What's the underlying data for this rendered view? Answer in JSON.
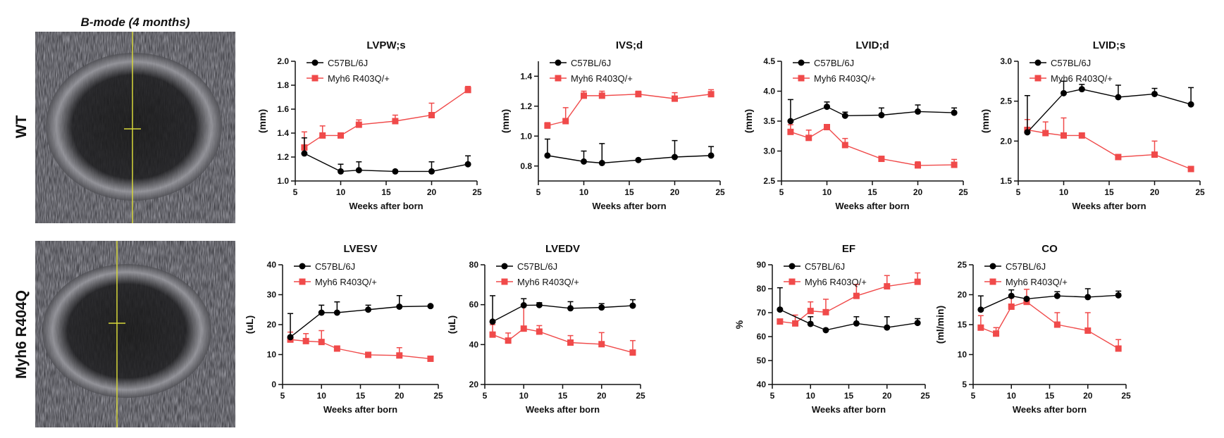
{
  "figure": {
    "image_title": "B-mode (4 months)",
    "row_labels": [
      "WT",
      "Myh6 R404Q"
    ],
    "colors": {
      "wt": "#000000",
      "mutant": "#f04a4a",
      "mmode_line": "#d8d83a"
    }
  },
  "chart_data": [
    {
      "type": "line",
      "title": "LVPW;s",
      "ylabel": "(mm)",
      "xlabel": "Weeks after born",
      "xlim": [
        5,
        25
      ],
      "xticks": [
        5,
        10,
        15,
        20,
        25
      ],
      "ylim": [
        1.0,
        2.0
      ],
      "yticks": [
        "1.0",
        "1.2",
        "1.4",
        "1.6",
        "1.8",
        "2.0"
      ],
      "legend": "top-left",
      "series": [
        {
          "name": "C57BL/6J",
          "x": [
            6,
            10,
            12,
            16,
            20,
            24
          ],
          "values": [
            1.23,
            1.08,
            1.09,
            1.08,
            1.08,
            1.14
          ],
          "error_upper": [
            1.36,
            1.14,
            1.16,
            1.08,
            1.16,
            1.21
          ]
        },
        {
          "name": "Myh6 R403Q/+",
          "x": [
            6,
            8,
            10,
            12,
            16,
            20,
            24
          ],
          "values": [
            1.28,
            1.38,
            1.38,
            1.47,
            1.5,
            1.55,
            1.76
          ],
          "error_upper": [
            1.41,
            1.46,
            1.38,
            1.51,
            1.55,
            1.65,
            1.79
          ]
        }
      ]
    },
    {
      "type": "line",
      "title": "IVS;d",
      "ylabel": "(mm)",
      "xlabel": "Weeks after born",
      "xlim": [
        5,
        25
      ],
      "xticks": [
        5,
        10,
        15,
        20,
        25
      ],
      "ylim": [
        0.7,
        1.5
      ],
      "yticks": [
        "0.8",
        "1.0",
        "1.2",
        "1.4"
      ],
      "legend": "top-left",
      "series": [
        {
          "name": "C57BL/6J",
          "x": [
            6,
            10,
            12,
            16,
            20,
            24
          ],
          "values": [
            0.87,
            0.83,
            0.82,
            0.84,
            0.86,
            0.87
          ],
          "error_upper": [
            0.98,
            0.9,
            0.95,
            0.84,
            0.97,
            0.93
          ]
        },
        {
          "name": "Myh6 R403Q/+",
          "x": [
            6,
            8,
            10,
            12,
            16,
            20,
            24
          ],
          "values": [
            1.07,
            1.1,
            1.27,
            1.27,
            1.28,
            1.25,
            1.28
          ],
          "error_upper": [
            1.09,
            1.19,
            1.3,
            1.3,
            1.3,
            1.29,
            1.31
          ]
        }
      ]
    },
    {
      "type": "line",
      "title": "LVID;d",
      "ylabel": "(mm)",
      "xlabel": "Weeks after born",
      "xlim": [
        5,
        25
      ],
      "xticks": [
        5,
        10,
        15,
        20,
        25
      ],
      "ylim": [
        2.5,
        4.5
      ],
      "yticks": [
        "2.5",
        "3.0",
        "3.5",
        "4.0",
        "4.5"
      ],
      "legend": "top-left",
      "series": [
        {
          "name": "C57BL/6J",
          "x": [
            6,
            10,
            12,
            16,
            20,
            24
          ],
          "values": [
            3.5,
            3.74,
            3.59,
            3.6,
            3.66,
            3.64
          ],
          "error_upper": [
            3.86,
            3.82,
            3.65,
            3.72,
            3.77,
            3.72
          ]
        },
        {
          "name": "Myh6 R403Q/+",
          "x": [
            6,
            8,
            10,
            12,
            16,
            20,
            24
          ],
          "values": [
            3.32,
            3.22,
            3.4,
            3.1,
            2.87,
            2.76,
            2.77
          ],
          "error_upper": [
            3.44,
            3.35,
            3.4,
            3.21,
            2.87,
            2.82,
            2.86
          ]
        }
      ]
    },
    {
      "type": "line",
      "title": "LVID;s",
      "ylabel": "(mm)",
      "xlabel": "Weeks after born",
      "xlim": [
        5,
        25
      ],
      "xticks": [
        5,
        10,
        15,
        20,
        25
      ],
      "ylim": [
        1.5,
        3.0
      ],
      "yticks": [
        "1.5",
        "2.0",
        "2.5",
        "3.0"
      ],
      "legend": "top-left",
      "series": [
        {
          "name": "C57BL/6J",
          "x": [
            6,
            10,
            12,
            16,
            20,
            24
          ],
          "values": [
            2.11,
            2.6,
            2.65,
            2.55,
            2.59,
            2.46
          ],
          "error_upper": [
            2.57,
            2.75,
            2.71,
            2.7,
            2.66,
            2.67
          ]
        },
        {
          "name": "Myh6 R403Q/+",
          "x": [
            6,
            8,
            10,
            12,
            16,
            20,
            24
          ],
          "values": [
            2.14,
            2.1,
            2.07,
            2.07,
            1.8,
            1.83,
            1.65
          ],
          "error_upper": [
            2.27,
            2.24,
            2.29,
            2.07,
            1.8,
            2.0,
            1.68
          ]
        }
      ]
    },
    {
      "type": "line",
      "title": "LVESV",
      "ylabel": "(uL)",
      "xlabel": "Weeks after born",
      "xlim": [
        5,
        25
      ],
      "xticks": [
        5,
        10,
        15,
        20,
        25
      ],
      "ylim": [
        0,
        40
      ],
      "yticks": [
        "0",
        "10",
        "20",
        "30",
        "40"
      ],
      "legend": "top-left",
      "series": [
        {
          "name": "C57BL/6J",
          "x": [
            6,
            10,
            12,
            16,
            20,
            24
          ],
          "values": [
            15.8,
            24,
            24,
            25,
            26,
            26.2
          ],
          "error_upper": [
            23.7,
            26.5,
            27.6,
            26.5,
            29.7,
            26.2
          ]
        },
        {
          "name": "Myh6 R403Q/+",
          "x": [
            6,
            8,
            10,
            12,
            16,
            20,
            24
          ],
          "values": [
            15,
            14.5,
            14.2,
            12,
            9.9,
            9.7,
            8.6
          ],
          "error_upper": [
            17.5,
            17,
            18,
            12.5,
            9.9,
            12.3,
            8.6
          ]
        }
      ]
    },
    {
      "type": "line",
      "title": "LVEDV",
      "ylabel": "(uL)",
      "xlabel": "Weeks after born",
      "xlim": [
        5,
        25
      ],
      "xticks": [
        5,
        10,
        15,
        20,
        25
      ],
      "ylim": [
        20,
        80
      ],
      "yticks": [
        "20",
        "40",
        "60",
        "80"
      ],
      "legend": "top-left",
      "series": [
        {
          "name": "C57BL/6J",
          "x": [
            6,
            10,
            12,
            16,
            20,
            24
          ],
          "values": [
            51.5,
            59.7,
            59.8,
            58.2,
            58.6,
            59.5
          ],
          "error_upper": [
            64.5,
            63,
            61,
            61.5,
            60.5,
            62.5
          ]
        },
        {
          "name": "Myh6 R403Q/+",
          "x": [
            6,
            8,
            10,
            12,
            16,
            20,
            24
          ],
          "values": [
            45,
            42,
            48,
            46.5,
            41,
            40.2,
            36
          ],
          "error_upper": [
            50,
            45.8,
            60,
            49.5,
            44.5,
            46,
            42
          ]
        }
      ]
    },
    {
      "type": "line",
      "title": "EF",
      "ylabel": "%",
      "xlabel": "Weeks after born",
      "xlim": [
        5,
        25
      ],
      "xticks": [
        5,
        10,
        15,
        20,
        25
      ],
      "ylim": [
        40,
        90
      ],
      "yticks": [
        "40",
        "50",
        "60",
        "70",
        "80",
        "90"
      ],
      "legend": "top-left",
      "series": [
        {
          "name": "C57BL/6J",
          "x": [
            6,
            10,
            12,
            16,
            20,
            24
          ],
          "values": [
            71.3,
            65.3,
            62.7,
            65.5,
            63.8,
            65.7
          ],
          "error_upper": [
            80.4,
            68.3,
            62.7,
            68.3,
            68.3,
            67.5
          ]
        },
        {
          "name": "Myh6 R403Q/+",
          "x": [
            6,
            8,
            10,
            12,
            16,
            20,
            24
          ],
          "values": [
            66.3,
            65.5,
            70.7,
            70.2,
            77,
            81,
            82.9
          ],
          "error_upper": [
            66.3,
            69,
            74.5,
            75.6,
            81.8,
            85.5,
            86.6
          ]
        }
      ]
    },
    {
      "type": "line",
      "title": "CO",
      "ylabel": "(ml/min)",
      "xlabel": "Weeks after born",
      "xlim": [
        5,
        25
      ],
      "xticks": [
        5,
        10,
        15,
        20,
        25
      ],
      "ylim": [
        5,
        25
      ],
      "yticks": [
        "5",
        "10",
        "15",
        "20",
        "25"
      ],
      "legend": "top-left",
      "series": [
        {
          "name": "C57BL/6J",
          "x": [
            6,
            10,
            12,
            16,
            20,
            24
          ],
          "values": [
            17.5,
            19.8,
            19.3,
            19.8,
            19.6,
            19.9
          ],
          "error_upper": [
            19.8,
            20.8,
            19.3,
            20.5,
            21,
            20.6
          ]
        },
        {
          "name": "Myh6 R403Q/+",
          "x": [
            6,
            8,
            10,
            12,
            16,
            20,
            24
          ],
          "values": [
            14.5,
            13.5,
            18.0,
            18.8,
            15,
            14,
            11
          ],
          "error_upper": [
            16.5,
            14.5,
            19.5,
            20.9,
            17,
            17,
            12.5
          ]
        }
      ]
    }
  ]
}
